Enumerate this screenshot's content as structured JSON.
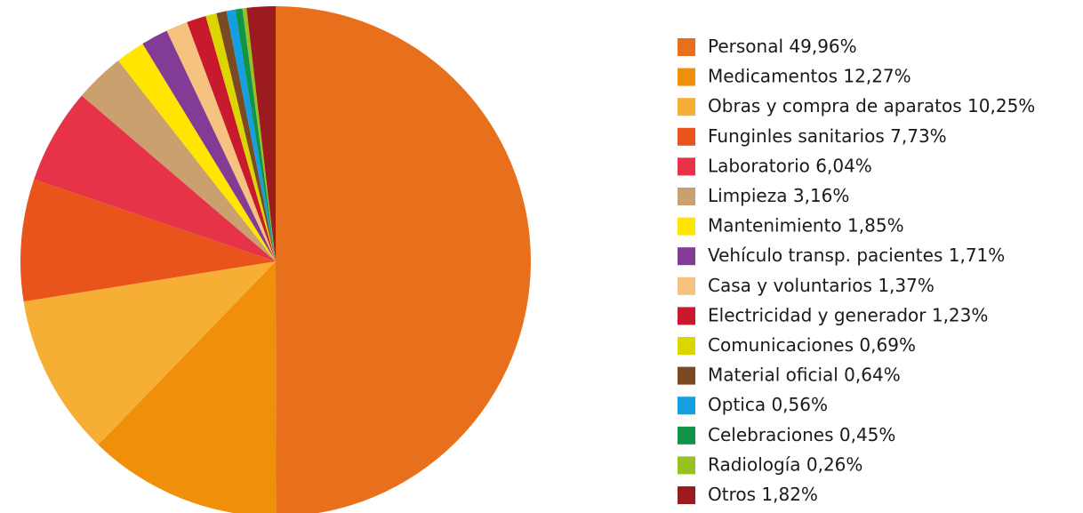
{
  "chart_data": {
    "type": "pie",
    "categories": [
      "Personal",
      "Medicamentos",
      "Obras y compra de aparatos",
      "Funginles sanitarios",
      "Laboratorio",
      "Limpieza",
      "Mantenimiento",
      "Vehículo transp. pacientes",
      "Casa y voluntarios",
      "Electricidad y generador",
      "Comunicaciones",
      "Material oficial",
      "Optica",
      "Celebraciones",
      "Radiología",
      "Otros"
    ],
    "values": [
      49.96,
      12.27,
      10.25,
      7.73,
      6.04,
      3.16,
      1.85,
      1.71,
      1.37,
      1.23,
      0.69,
      0.64,
      0.56,
      0.45,
      0.26,
      1.82
    ],
    "value_labels": [
      "49,96%",
      "12,27%",
      "10,25%",
      "7,73%",
      "6,04%",
      "3,16%",
      "1,85%",
      "1,71%",
      "1,37%",
      "1,23%",
      "0,69%",
      "0,64%",
      "0,56%",
      "0,45%",
      "0,26%",
      "1,82%"
    ],
    "colors": [
      "#e8701d",
      "#f0900a",
      "#f7ae35",
      "#e8541c",
      "#e63347",
      "#c9a06e",
      "#ffe500",
      "#823c96",
      "#f5c27f",
      "#c81a2c",
      "#dcd600",
      "#7b4a24",
      "#139fe0",
      "#12934a",
      "#97c120",
      "#9b1b1f"
    ],
    "legend": "right"
  }
}
